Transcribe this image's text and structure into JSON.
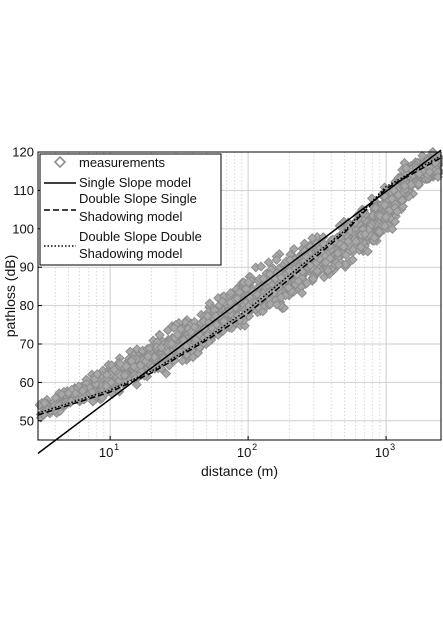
{
  "chart_data": {
    "type": "scatter",
    "xlabel": "distance (m)",
    "ylabel": "pathloss (dB)",
    "xscale": "log",
    "xlim": [
      3,
      2500
    ],
    "ylim": [
      45,
      120
    ],
    "grid": true,
    "legend_position": "top-left",
    "x_ticks": [
      {
        "base": "10",
        "exp": "1",
        "value": 10
      },
      {
        "base": "10",
        "exp": "2",
        "value": 100
      },
      {
        "base": "10",
        "exp": "3",
        "value": 1000
      }
    ],
    "y_ticks": [
      "50",
      "60",
      "70",
      "80",
      "90",
      "100",
      "110",
      "120"
    ],
    "legend": [
      {
        "lines": [
          "measurements"
        ],
        "style": "marker"
      },
      {
        "lines": [
          "Single Slope model"
        ],
        "style": "solid"
      },
      {
        "lines": [
          "Double Slope Single",
          "Shadowing model"
        ],
        "style": "dashed"
      },
      {
        "lines": [
          "Double Slope Double",
          "Shadowing model"
        ],
        "style": "dotted"
      }
    ],
    "colors": {
      "measurements": "#8c8c8c",
      "models": "#000000",
      "grid": "#cfcfcf"
    },
    "series": [
      {
        "name": "measurements",
        "kind": "band",
        "x": [
          3,
          5,
          8,
          10,
          20,
          50,
          100,
          200,
          500,
          1000,
          1500,
          2500
        ],
        "y_low": [
          49,
          52,
          54,
          55,
          59,
          66,
          73,
          79,
          88,
          96,
          107,
          112
        ],
        "y_high": [
          56,
          60,
          64,
          67,
          73,
          82,
          90,
          96,
          104,
          113,
          121,
          121
        ]
      },
      {
        "name": "Single Slope model",
        "style": "solid",
        "x": [
          3,
          2500
        ],
        "y": [
          41.5,
          120.5
        ]
      },
      {
        "name": "Double Slope Single Shadowing model",
        "style": "dashed",
        "x": [
          3,
          10,
          20,
          50,
          100,
          200,
          500,
          1000,
          2500
        ],
        "y": [
          51.5,
          57.5,
          62.5,
          71,
          78,
          87,
          99,
          110.5,
          118.5
        ]
      },
      {
        "name": "Double Slope Double Shadowing model",
        "style": "dotted",
        "x": [
          3,
          10,
          20,
          50,
          100,
          200,
          500,
          1000,
          2500
        ],
        "y": [
          52,
          58,
          63,
          71.5,
          79,
          88,
          99.5,
          111,
          119
        ]
      }
    ]
  }
}
